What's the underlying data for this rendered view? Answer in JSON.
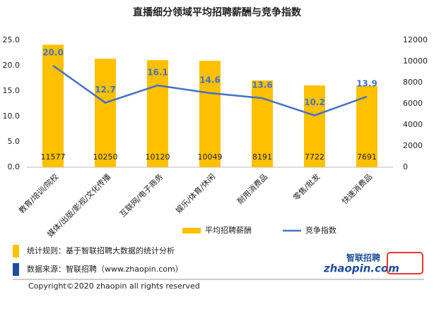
{
  "chart_data": {
    "type": "combo",
    "title": "直播细分领域平均招聘薪酬与竞争指数",
    "categories": [
      "教育/培训/院校",
      "媒体/出版/影视/文化传播",
      "互联网/电子商务",
      "娱乐/体育/休闲",
      "耐用消费品",
      "零售/批发",
      "快速消费品"
    ],
    "series": [
      {
        "name": "平均招聘薪酬",
        "type": "bar",
        "axis": "y2",
        "color": "#FFC000",
        "values": [
          11577,
          10250,
          10120,
          10049,
          8191,
          7722,
          7691
        ]
      },
      {
        "name": "竞争指数",
        "type": "line",
        "axis": "y",
        "color": "#4472C4",
        "values": [
          20.0,
          12.7,
          16.1,
          14.6,
          13.6,
          10.2,
          13.9
        ],
        "value_labels": [
          "20.0",
          "12.7",
          "16.1",
          "14.6",
          "13.6",
          "10.2",
          "13.9"
        ]
      }
    ],
    "ylim": [
      0,
      25
    ],
    "yticks": [
      {
        "value": 0,
        "label": "0.0"
      },
      {
        "value": 5,
        "label": "5.0"
      },
      {
        "value": 10,
        "label": "10.0"
      },
      {
        "value": 15,
        "label": "15.0"
      },
      {
        "value": 20,
        "label": "20.0"
      },
      {
        "value": 25,
        "label": "25.0"
      }
    ],
    "y2lim": [
      0,
      12000
    ],
    "y2ticks": [
      0,
      2000,
      4000,
      6000,
      8000,
      10000,
      12000
    ],
    "legend": "bottom"
  },
  "footer": {
    "rule": "统计规则：基于智联招聘大数据的统计分析",
    "source": "数据来源：智联招聘（www.zhaopin.com）",
    "copyright": "Copyright©2020 zhaopin all rights reserved",
    "logo_name": "智联招聘",
    "logo_site": "zhaopin.com"
  }
}
